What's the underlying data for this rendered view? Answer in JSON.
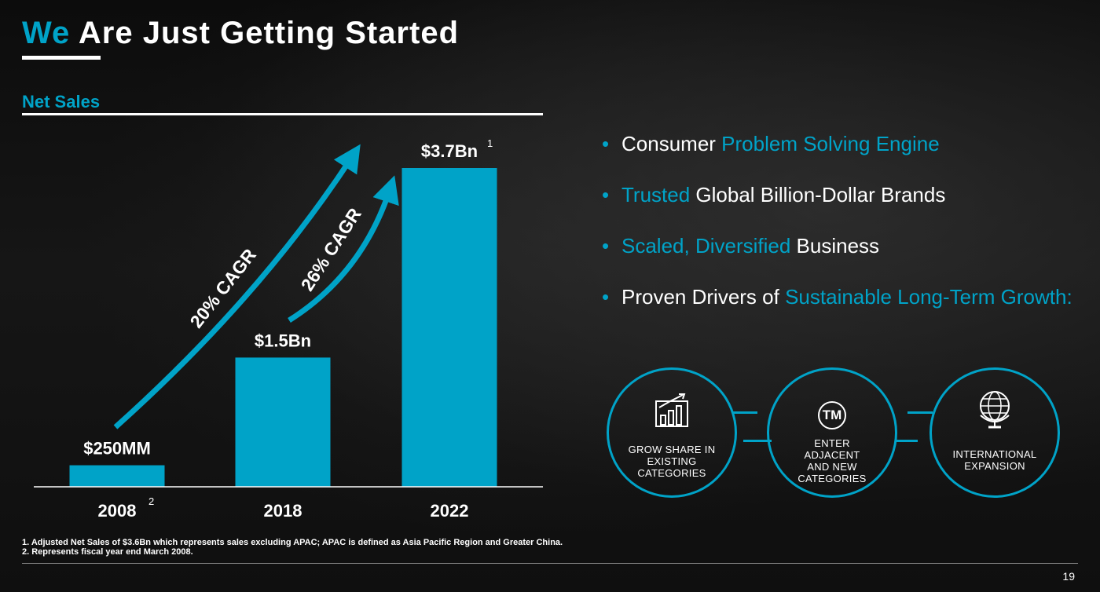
{
  "title": {
    "accent": "We",
    "rest": "Are Just Getting Started"
  },
  "subtitle": "Net Sales",
  "colors": {
    "accent": "#00a3c8",
    "background": "#0d0d0d",
    "text": "#ffffff"
  },
  "chart_data": {
    "type": "bar",
    "categories": [
      "2008",
      "2018",
      "2022"
    ],
    "category_superscripts": [
      "2",
      "",
      ""
    ],
    "values": [
      0.25,
      1.5,
      3.7
    ],
    "value_units": "billions USD",
    "data_labels": [
      "$250MM",
      "$1.5Bn",
      "$3.7Bn"
    ],
    "data_label_superscripts": [
      "",
      "",
      "1"
    ],
    "ylim": [
      0,
      3.7
    ],
    "grid": false,
    "xlabel": "",
    "ylabel": "",
    "annotations": [
      {
        "text": "20% CAGR",
        "from": "2008",
        "to": "2022"
      },
      {
        "text": "26% CAGR",
        "from": "2018",
        "to": "2022"
      }
    ]
  },
  "bullets": [
    {
      "parts": [
        {
          "t": "Consumer ",
          "accent": false
        },
        {
          "t": "Problem Solving Engine",
          "accent": true
        }
      ]
    },
    {
      "parts": [
        {
          "t": "Trusted",
          "accent": true
        },
        {
          "t": " Global Billion-Dollar Brands",
          "accent": false
        }
      ]
    },
    {
      "parts": [
        {
          "t": "Scaled, Diversified",
          "accent": true
        },
        {
          "t": " Business",
          "accent": false
        }
      ]
    },
    {
      "parts": [
        {
          "t": "Proven Drivers of ",
          "accent": false
        },
        {
          "t": "Sustainable Long-Term Growth:",
          "accent": true
        }
      ]
    }
  ],
  "drivers": [
    {
      "icon": "bar-chart-growth-icon",
      "lines": [
        "GROW SHARE IN",
        "EXISTING",
        "CATEGORIES"
      ]
    },
    {
      "icon": "trademark-icon",
      "icon_text": "TM",
      "lines": [
        "ENTER",
        "ADJACENT",
        "AND NEW",
        "CATEGORIES"
      ]
    },
    {
      "icon": "globe-icon",
      "lines": [
        "INTERNATIONAL",
        "EXPANSION"
      ]
    }
  ],
  "footnotes": [
    "1. Adjusted Net Sales of $3.6Bn which represents sales excluding APAC; APAC is defined as Asia Pacific Region and Greater China.",
    "2. Represents fiscal year end March 2008."
  ],
  "page_number": "19"
}
